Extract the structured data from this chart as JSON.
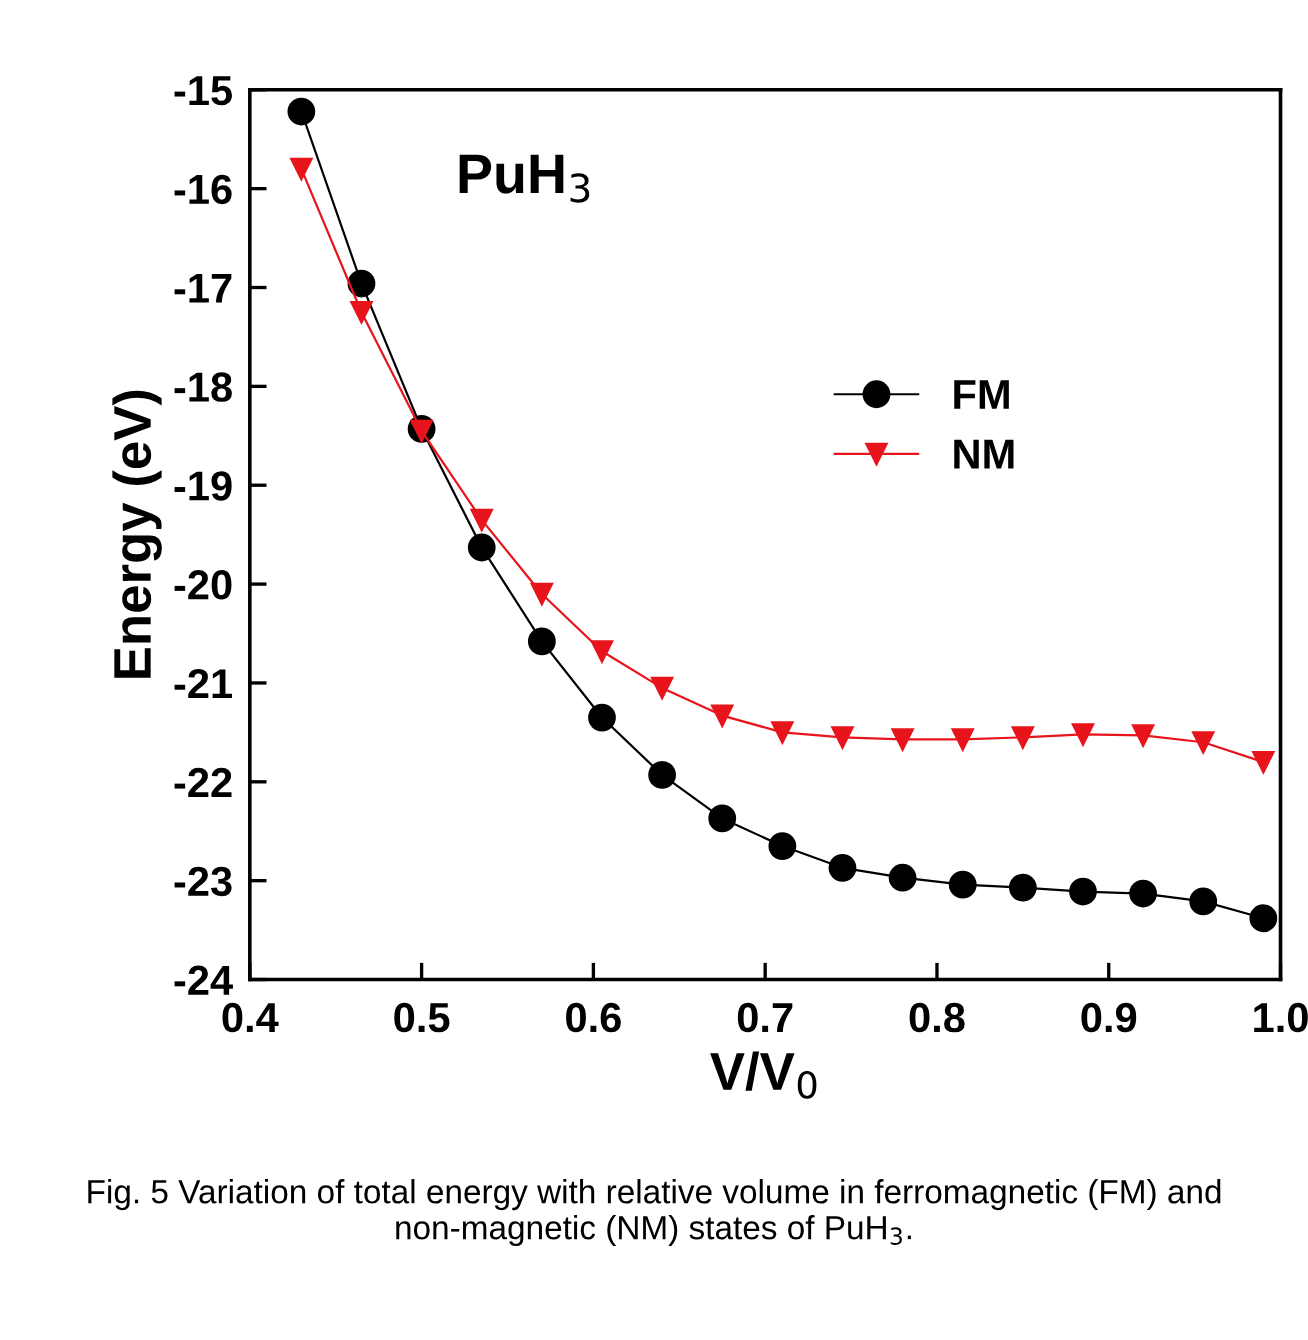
{
  "chart_data": {
    "type": "line",
    "xlabel": "V/V$_{0}$",
    "ylabel": "Energy (eV)",
    "x": [
      0.43,
      0.465,
      0.5,
      0.535,
      0.57,
      0.605,
      0.64,
      0.675,
      0.71,
      0.745,
      0.78,
      0.815,
      0.85,
      0.885,
      0.92,
      0.955,
      0.99
    ],
    "series": [
      {
        "name": "FM",
        "color": "#000000",
        "marker": "circle",
        "values": [
          -15.22,
          -16.96,
          -18.43,
          -19.63,
          -20.58,
          -21.35,
          -21.93,
          -22.37,
          -22.65,
          -22.87,
          -22.97,
          -23.04,
          -23.07,
          -23.11,
          -23.13,
          -23.21,
          -23.38
        ]
      },
      {
        "name": "NM",
        "color": "#e8141c",
        "marker": "triangle",
        "values": [
          -15.8,
          -17.25,
          -18.45,
          -19.35,
          -20.1,
          -20.68,
          -21.05,
          -21.33,
          -21.5,
          -21.55,
          -21.57,
          -21.57,
          -21.55,
          -21.52,
          -21.53,
          -21.6,
          -21.8
        ]
      }
    ],
    "xlim": [
      0.4,
      1.0
    ],
    "xticks": [
      0.4,
      0.5,
      0.6,
      0.7,
      0.8,
      0.9,
      {
        "value": 1.0,
        "label": "1.0"
      }
    ],
    "ylim": [
      -24,
      -15
    ],
    "yticks": [
      -24,
      -23,
      -22,
      -21,
      -20,
      -19,
      -18,
      -17,
      -16,
      -15
    ],
    "legend": "right",
    "grid": false,
    "annotations": [
      "PuH$_{3}$",
      "Fig. 5 Variation of total energy with relative volume in ferromagnetic (FM) and non-magnetic (NM) states of PuH$_{3}$."
    ]
  }
}
